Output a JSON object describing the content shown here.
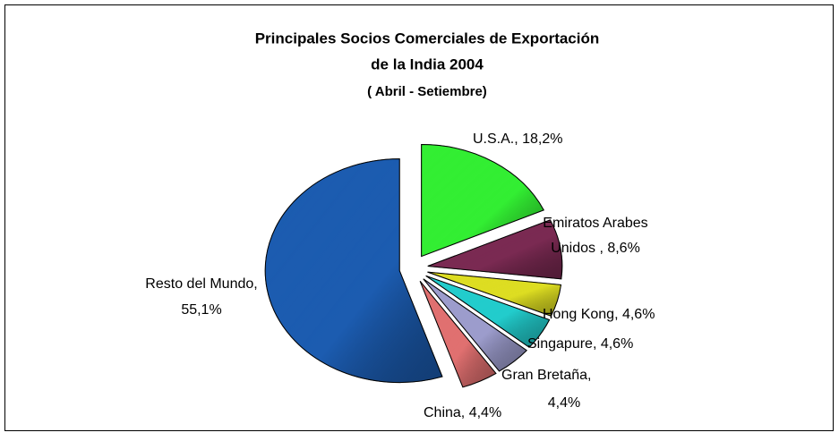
{
  "chart_data": {
    "type": "pie",
    "title": [
      "Principales Socios Comerciales de Exportación",
      "de la India 2004"
    ],
    "subtitle": "( Abril - Setiembre)",
    "values": [
      18.2,
      8.6,
      4.6,
      4.6,
      4.4,
      4.4,
      55.1
    ],
    "value_labels": [
      [
        "U.S.A., 18,2%"
      ],
      [
        "Emiratos Arabes",
        "Unidos , 8,6%"
      ],
      [
        "Hong Kong, 4,6%"
      ],
      [
        "Singapure, 4,6%"
      ],
      [
        "Gran Bretaña,",
        "4,4%"
      ],
      [
        "China, 4,4%"
      ],
      [
        "Resto del Mundo,",
        "55,1%"
      ]
    ],
    "colors": [
      "#33ee33",
      "#7a2a52",
      "#dddd22",
      "#22cccc",
      "#9c9ccc",
      "#e07070",
      "#1c5cb0"
    ]
  }
}
